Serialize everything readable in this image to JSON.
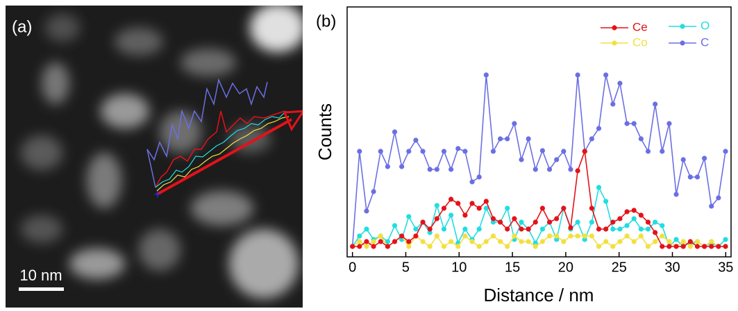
{
  "panel_a": {
    "label": "(a)",
    "scale_bar": "10 nm"
  },
  "chart_data": {
    "type": "line",
    "panel_label": "(b)",
    "x_label": "Distance / nm",
    "y_label": "Counts",
    "xlim": [
      -0.5,
      35.5
    ],
    "xticks": [
      0,
      5,
      10,
      15,
      20,
      25,
      30,
      35
    ],
    "ylim": [
      0,
      360
    ],
    "x": [
      0,
      0.66,
      1.32,
      1.98,
      2.64,
      3.3,
      3.96,
      4.62,
      5.28,
      5.94,
      6.6,
      7.26,
      7.92,
      8.58,
      9.24,
      9.9,
      10.56,
      11.22,
      11.88,
      12.54,
      13.2,
      13.86,
      14.52,
      15.18,
      15.84,
      16.5,
      17.16,
      17.82,
      18.48,
      19.14,
      19.8,
      20.46,
      21.12,
      21.78,
      22.44,
      23.1,
      23.76,
      24.42,
      25.08,
      25.74,
      26.4,
      27.06,
      27.72,
      28.38,
      29.04,
      29.7,
      30.36,
      31.02,
      31.68,
      32.34,
      33.0,
      33.66,
      34.32,
      34.98
    ],
    "series": [
      {
        "name": "C",
        "color": "#6b6fe3",
        "values": [
          15,
          152,
          66,
          94,
          152,
          130,
          180,
          130,
          152,
          168,
          152,
          126,
          126,
          152,
          126,
          156,
          152,
          108,
          115,
          262,
          152,
          170,
          170,
          192,
          140,
          170,
          126,
          153,
          126,
          140,
          152,
          126,
          262,
          152,
          170,
          185,
          262,
          220,
          250,
          192,
          192,
          170,
          152,
          220,
          152,
          192,
          90,
          140,
          115,
          115,
          142,
          73,
          85,
          152
        ]
      },
      {
        "name": "O",
        "color": "#22dde0",
        "values": [
          15,
          30,
          40,
          25,
          30,
          22,
          45,
          25,
          58,
          40,
          50,
          35,
          74,
          40,
          60,
          20,
          40,
          25,
          40,
          70,
          50,
          50,
          70,
          25,
          50,
          40,
          20,
          40,
          50,
          25,
          70,
          40,
          50,
          25,
          50,
          100,
          80,
          40,
          40,
          45,
          55,
          40,
          40,
          50,
          45,
          15,
          25,
          15,
          20,
          22,
          15,
          20,
          15,
          25
        ]
      },
      {
        "name": "Co",
        "color": "#f2e040",
        "values": [
          15,
          22,
          15,
          22,
          30,
          15,
          22,
          30,
          15,
          30,
          22,
          15,
          30,
          15,
          22,
          15,
          30,
          22,
          15,
          22,
          30,
          22,
          15,
          30,
          22,
          22,
          15,
          22,
          30,
          30,
          22,
          30,
          30,
          30,
          30,
          15,
          22,
          15,
          22,
          30,
          22,
          30,
          15,
          22,
          30,
          22,
          15,
          22,
          15,
          22,
          15,
          22,
          15,
          15
        ]
      },
      {
        "name": "Ce",
        "color": "#e4121a",
        "values": [
          15,
          15,
          22,
          15,
          22,
          15,
          22,
          30,
          22,
          30,
          50,
          40,
          55,
          70,
          83,
          77,
          60,
          77,
          70,
          80,
          55,
          50,
          40,
          55,
          40,
          40,
          50,
          70,
          50,
          55,
          70,
          42,
          124,
          152,
          70,
          40,
          40,
          50,
          55,
          65,
          67,
          60,
          50,
          35,
          15,
          15,
          15,
          15,
          22,
          15,
          15,
          15,
          15,
          15
        ]
      }
    ]
  }
}
